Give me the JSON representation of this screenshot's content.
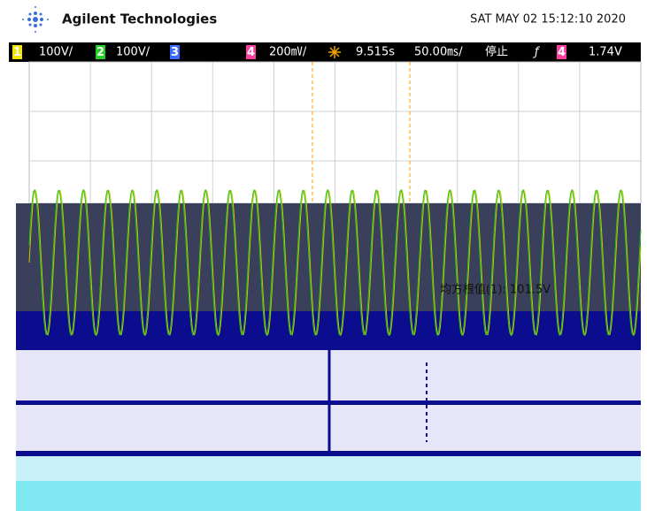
{
  "header": {
    "brand": "Agilent Technologies",
    "datetime": "SAT MAY 02 15:12:10 2020"
  },
  "channel_bar": {
    "ch1": "1",
    "ch1_scale": "100V/",
    "ch2": "2",
    "ch2_scale": "100V/",
    "ch3": "3",
    "ch4": "4",
    "ch4_scale": "200㎷/",
    "delay": "9.515s",
    "timebase": "50.00㎳/",
    "status": "停止",
    "trigger_slope": "ƒ",
    "trigger_source": "4",
    "trigger_level": "1.74V"
  },
  "measurements": [
    "均方根值(1): 101.5V"
  ]
}
